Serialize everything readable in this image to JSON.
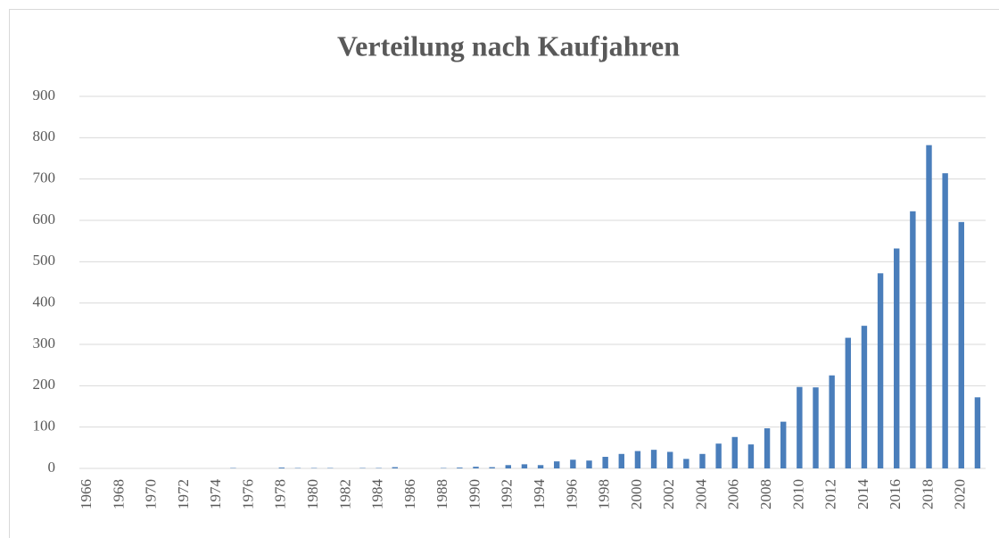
{
  "chart_data": {
    "type": "bar",
    "title": "Verteilung nach Kaufjahren",
    "categories": [
      "1966",
      null,
      "1968",
      null,
      "1970",
      null,
      "1972",
      null,
      "1974",
      null,
      "1976",
      null,
      "1978",
      null,
      "1980",
      null,
      "1982",
      null,
      "1984",
      null,
      "1986",
      null,
      "1988",
      null,
      "1990",
      null,
      "1992",
      null,
      "1994",
      null,
      "1996",
      null,
      "1998",
      null,
      "2000",
      null,
      "2002",
      null,
      "2004",
      null,
      "2006",
      null,
      "2008",
      null,
      "2010",
      null,
      "2012",
      null,
      "2014",
      null,
      "2016",
      null,
      "2018",
      null,
      "2020",
      null
    ],
    "values": [
      0,
      0,
      0,
      0,
      0,
      0,
      0,
      0,
      0,
      1,
      0,
      0,
      2,
      1,
      1,
      1,
      0,
      1,
      1,
      3,
      0,
      0,
      1,
      2,
      4,
      3,
      8,
      10,
      8,
      17,
      21,
      19,
      28,
      35,
      42,
      45,
      40,
      23,
      35,
      60,
      76,
      58,
      97,
      113,
      197,
      196,
      225,
      316,
      345,
      472,
      532,
      622,
      782,
      714,
      596,
      172
    ],
    "color": "#4a7ebb",
    "ylim": [
      0,
      900
    ],
    "yticks": [
      0,
      100,
      200,
      300,
      400,
      500,
      600,
      700,
      800,
      900
    ],
    "grid": true
  }
}
